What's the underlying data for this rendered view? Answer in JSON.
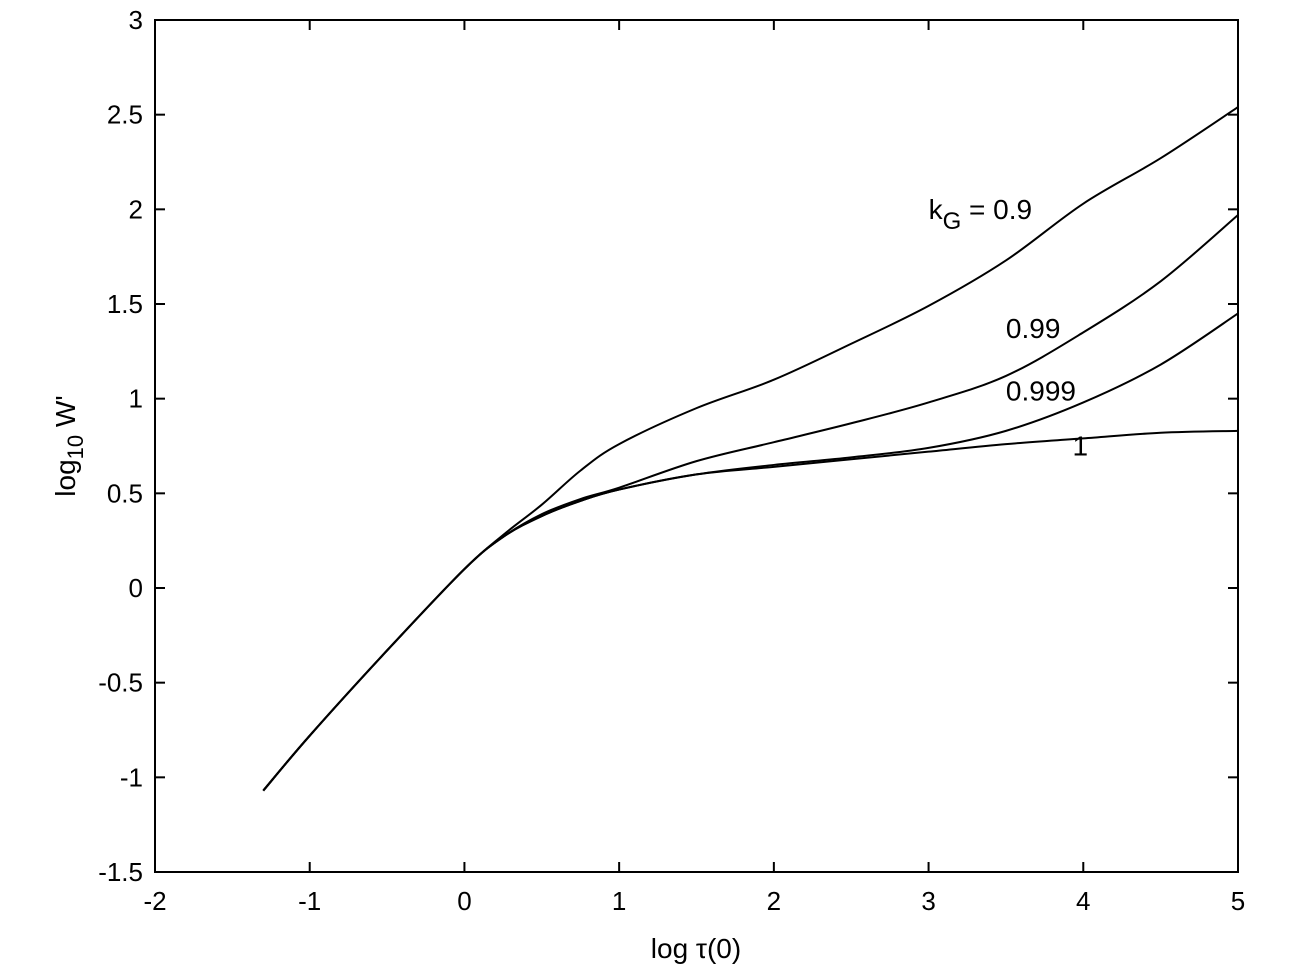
{
  "chart_data": {
    "type": "line",
    "title": "",
    "xlabel": "log τ(0)",
    "ylabel": "log10 W'",
    "xlabel_parts": {
      "main": "log ",
      "greek": "τ",
      "rest": "(0)"
    },
    "ylabel_parts": {
      "main": "log",
      "sub": "10",
      "rest": "W'"
    },
    "xlim": [
      -2,
      5
    ],
    "ylim": [
      -1.5,
      3
    ],
    "xticks": [
      -2,
      -1,
      0,
      1,
      2,
      3,
      4,
      5
    ],
    "yticks": [
      -1.5,
      -1,
      -0.5,
      0,
      0.5,
      1,
      1.5,
      2,
      2.5,
      3
    ],
    "xtick_labels": [
      "-2",
      "-1",
      "0",
      "1",
      "2",
      "3",
      "4",
      "5"
    ],
    "ytick_labels": [
      "-1.5",
      "-1",
      "-0.5",
      "0",
      "0.5",
      "1",
      "1.5",
      "2",
      "2.5",
      "3"
    ],
    "grid": false,
    "series": [
      {
        "name": "kG = 0.9",
        "label": "0.9",
        "x": [
          -1.3,
          -1,
          -0.5,
          0,
          0.25,
          0.5,
          0.75,
          1,
          1.5,
          2,
          2.5,
          3,
          3.5,
          4,
          4.5,
          5
        ],
        "y": [
          -1.07,
          -0.78,
          -0.33,
          0.1,
          0.28,
          0.44,
          0.62,
          0.76,
          0.95,
          1.1,
          1.29,
          1.49,
          1.73,
          2.03,
          2.27,
          2.54
        ]
      },
      {
        "name": "kG = 0.99",
        "label": "0.99",
        "x": [
          -1.3,
          -1,
          -0.5,
          0,
          0.25,
          0.5,
          0.75,
          1,
          1.5,
          2,
          2.5,
          3,
          3.5,
          4,
          4.5,
          5
        ],
        "y": [
          -1.07,
          -0.78,
          -0.33,
          0.1,
          0.27,
          0.39,
          0.47,
          0.53,
          0.67,
          0.77,
          0.87,
          0.98,
          1.12,
          1.35,
          1.62,
          1.97
        ]
      },
      {
        "name": "kG = 0.999",
        "label": "0.999",
        "x": [
          -1.3,
          -1,
          -0.5,
          0,
          0.25,
          0.5,
          0.75,
          1,
          1.5,
          2,
          2.5,
          3,
          3.5,
          4,
          4.5,
          5
        ],
        "y": [
          -1.07,
          -0.78,
          -0.33,
          0.1,
          0.27,
          0.38,
          0.46,
          0.52,
          0.6,
          0.65,
          0.69,
          0.74,
          0.83,
          0.98,
          1.18,
          1.45
        ]
      },
      {
        "name": "kG = 1",
        "label": "1",
        "x": [
          -1.3,
          -1,
          -0.5,
          0,
          0.25,
          0.5,
          0.75,
          1,
          1.5,
          2,
          2.5,
          3,
          3.5,
          4,
          4.5,
          5
        ],
        "y": [
          -1.07,
          -0.78,
          -0.33,
          0.1,
          0.27,
          0.38,
          0.46,
          0.52,
          0.6,
          0.64,
          0.68,
          0.72,
          0.76,
          0.79,
          0.82,
          0.83
        ]
      }
    ],
    "annotations": [
      {
        "text_main": "k",
        "text_sub": "G",
        "text_rest": " = 0.9",
        "x": 3.0,
        "y": 1.95
      },
      {
        "text": "0.99",
        "x": 3.5,
        "y": 1.32
      },
      {
        "text": "0.999",
        "x": 3.5,
        "y": 0.99
      },
      {
        "text": "1",
        "x": 3.93,
        "y": 0.7
      }
    ],
    "color": "#000000"
  }
}
